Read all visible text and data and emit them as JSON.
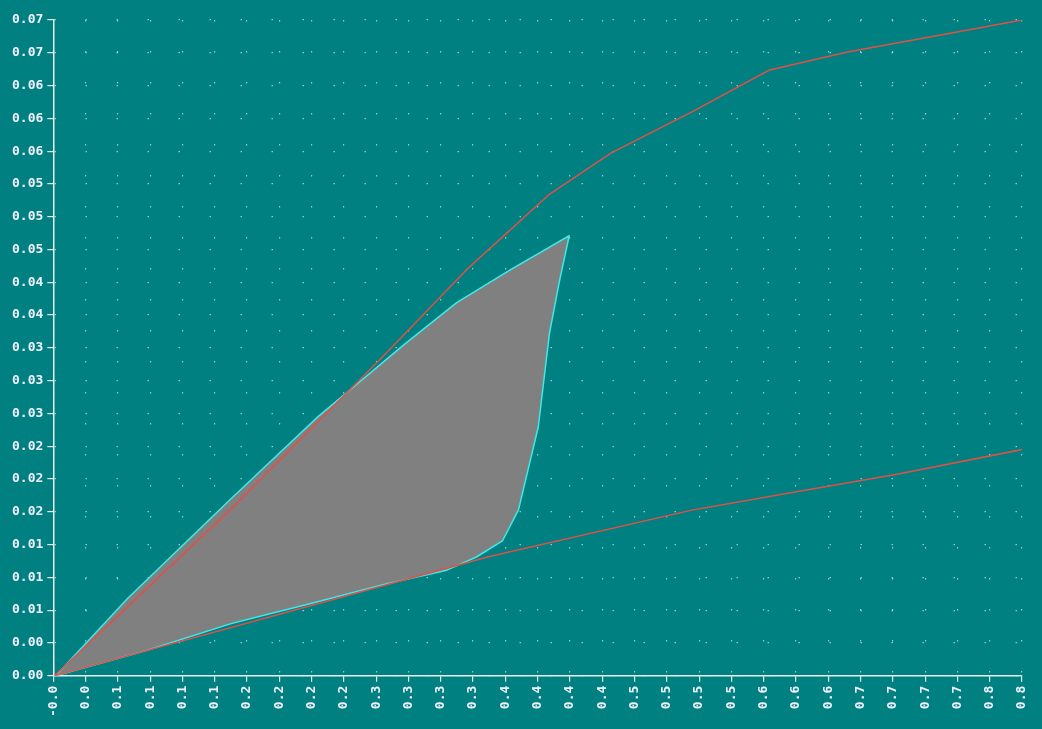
{
  "chart_data": {
    "type": "line",
    "xlim": [
      -0.001,
      0.782
    ],
    "xticks": [
      {
        "value": -0.001,
        "label": "-0.0"
      },
      {
        "value": 0.0251,
        "label": "0.0"
      },
      {
        "value": 0.0512,
        "label": "0.1"
      },
      {
        "value": 0.0773,
        "label": "0.1"
      },
      {
        "value": 0.1034,
        "label": "0.1"
      },
      {
        "value": 0.1295,
        "label": "0.1"
      },
      {
        "value": 0.1556,
        "label": "0.2"
      },
      {
        "value": 0.1817,
        "label": "0.2"
      },
      {
        "value": 0.2078,
        "label": "0.2"
      },
      {
        "value": 0.2339,
        "label": "0.2"
      },
      {
        "value": 0.26,
        "label": "0.3"
      },
      {
        "value": 0.2861,
        "label": "0.3"
      },
      {
        "value": 0.3122,
        "label": "0.3"
      },
      {
        "value": 0.3383,
        "label": "0.3"
      },
      {
        "value": 0.3644,
        "label": "0.4"
      },
      {
        "value": 0.3905,
        "label": "0.4"
      },
      {
        "value": 0.4166,
        "label": "0.4"
      },
      {
        "value": 0.4427,
        "label": "0.4"
      },
      {
        "value": 0.4688,
        "label": "0.5"
      },
      {
        "value": 0.4949,
        "label": "0.5"
      },
      {
        "value": 0.521,
        "label": "0.5"
      },
      {
        "value": 0.5471,
        "label": "0.5"
      },
      {
        "value": 0.5732,
        "label": "0.6"
      },
      {
        "value": 0.5993,
        "label": "0.6"
      },
      {
        "value": 0.6254,
        "label": "0.6"
      },
      {
        "value": 0.6515,
        "label": "0.7"
      },
      {
        "value": 0.6776,
        "label": "0.7"
      },
      {
        "value": 0.7037,
        "label": "0.7"
      },
      {
        "value": 0.7298,
        "label": "0.7"
      },
      {
        "value": 0.7559,
        "label": "0.8"
      },
      {
        "value": 0.782,
        "label": "0.8"
      }
    ],
    "ylim": [
      0,
      0.0696
    ],
    "yticks": [
      {
        "value": 0,
        "label": "0.00"
      },
      {
        "value": 0.00348,
        "label": "0.00"
      },
      {
        "value": 0.00696,
        "label": "0.01"
      },
      {
        "value": 0.01044,
        "label": "0.01"
      },
      {
        "value": 0.01392,
        "label": "0.01"
      },
      {
        "value": 0.0174,
        "label": "0.02"
      },
      {
        "value": 0.02088,
        "label": "0.02"
      },
      {
        "value": 0.02436,
        "label": "0.02"
      },
      {
        "value": 0.02784,
        "label": "0.03"
      },
      {
        "value": 0.03132,
        "label": "0.03"
      },
      {
        "value": 0.0348,
        "label": "0.03"
      },
      {
        "value": 0.03828,
        "label": "0.04"
      },
      {
        "value": 0.04176,
        "label": "0.04"
      },
      {
        "value": 0.04524,
        "label": "0.05"
      },
      {
        "value": 0.04872,
        "label": "0.05"
      },
      {
        "value": 0.0522,
        "label": "0.05"
      },
      {
        "value": 0.05568,
        "label": "0.06"
      },
      {
        "value": 0.05916,
        "label": "0.06"
      },
      {
        "value": 0.06264,
        "label": "0.06"
      },
      {
        "value": 0.06612,
        "label": "0.07"
      },
      {
        "value": 0.0696,
        "label": "0.07"
      }
    ],
    "grid": true,
    "marker": "none",
    "series": [
      {
        "type": "line",
        "color": "#e05048",
        "x": [
          0,
          0.142,
          0.267,
          0.333,
          0.4,
          0.45,
          0.516,
          0.578,
          0.641,
          0.724,
          0.782
        ],
        "values": [
          0,
          0.0176,
          0.0341,
          0.0431,
          0.0511,
          0.0555,
          0.0599,
          0.0643,
          0.0662,
          0.0682,
          0.0696
        ]
      },
      {
        "type": "line",
        "color": "#e05048",
        "x": [
          0,
          0.184,
          0.35,
          0.516,
          0.682,
          0.782
        ],
        "values": [
          0,
          0.0066,
          0.0126,
          0.0176,
          0.0214,
          0.024
        ]
      },
      {
        "type": "area",
        "color": "#808080",
        "x": [
          0.001,
          0.059,
          0.142,
          0.213,
          0.283,
          0.325,
          0.366,
          0.416,
          0.408,
          0.4,
          0.391,
          0.383,
          0.375,
          0.362,
          0.341,
          0.317,
          0.267,
          0.208,
          0.142,
          0.075,
          0.001
        ],
        "values": [
          0,
          0.0082,
          0.0187,
          0.0275,
          0.0352,
          0.0396,
          0.0429,
          0.0467,
          0.0418,
          0.0363,
          0.0264,
          0.022,
          0.0176,
          0.0143,
          0.0126,
          0.0112,
          0.0097,
          0.0077,
          0.0055,
          0.0027,
          0
        ]
      }
    ]
  }
}
